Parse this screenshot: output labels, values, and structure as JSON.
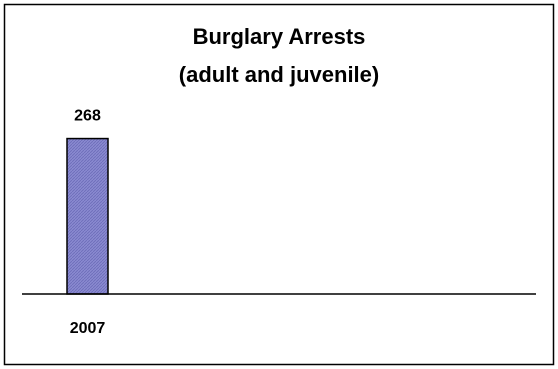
{
  "chart_data": {
    "type": "bar",
    "title_lines": [
      "Burglary Arrests",
      "(adult and juvenile)"
    ],
    "categories": [
      "2007"
    ],
    "values": [
      268
    ],
    "data_labels": [
      "268"
    ],
    "ylim": [
      0,
      300
    ],
    "grid": false,
    "colors": {
      "bar_fill": "#8a8ad0",
      "bar_stroke": "#000000",
      "frame": "#000000",
      "axis": "#000000"
    }
  }
}
